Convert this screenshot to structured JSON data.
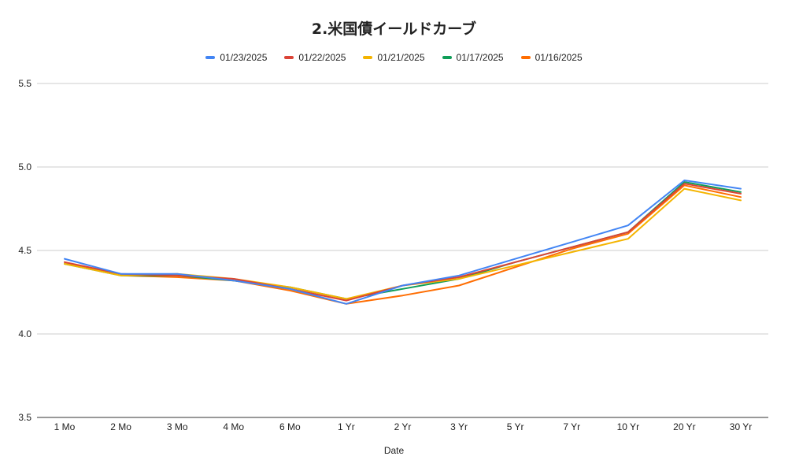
{
  "chart_data": {
    "type": "line",
    "title": "2.米国債イールドカーブ",
    "xlabel": "Date",
    "ylabel": "",
    "ylim": [
      3.5,
      5.5
    ],
    "yticks": [
      "3.5",
      "4.0",
      "4.5",
      "5.0",
      "5.5"
    ],
    "grid": true,
    "legend_position": "top",
    "categories": [
      "1 Mo",
      "2 Mo",
      "3 Mo",
      "4 Mo",
      "6 Mo",
      "1 Yr",
      "2 Yr",
      "3 Yr",
      "5 Yr",
      "7 Yr",
      "10 Yr",
      "20 Yr",
      "30 Yr"
    ],
    "series": [
      {
        "name": "01/23/2025",
        "color": "#4285f4",
        "values": [
          4.45,
          4.36,
          4.36,
          4.32,
          4.27,
          4.18,
          4.29,
          4.35,
          4.45,
          4.55,
          4.65,
          4.92,
          4.87
        ]
      },
      {
        "name": "01/22/2025",
        "color": "#db4437",
        "values": [
          4.43,
          4.36,
          4.35,
          4.33,
          4.27,
          4.2,
          4.29,
          4.34,
          4.43,
          4.52,
          4.61,
          4.9,
          4.84
        ]
      },
      {
        "name": "01/21/2025",
        "color": "#f4b400",
        "values": [
          4.42,
          4.35,
          4.36,
          4.33,
          4.28,
          4.21,
          4.29,
          4.33,
          4.41,
          4.49,
          4.57,
          4.87,
          4.8
        ]
      },
      {
        "name": "01/17/2025",
        "color": "#0f9d58",
        "values": [
          4.42,
          4.35,
          4.35,
          4.32,
          4.28,
          4.21,
          4.27,
          4.33,
          4.43,
          4.52,
          4.61,
          4.91,
          4.85
        ]
      },
      {
        "name": "01/16/2025",
        "color": "#ff6d01",
        "values": [
          4.43,
          4.35,
          4.34,
          4.32,
          4.26,
          4.18,
          4.23,
          4.29,
          4.4,
          4.51,
          4.6,
          4.89,
          4.82
        ]
      }
    ]
  }
}
